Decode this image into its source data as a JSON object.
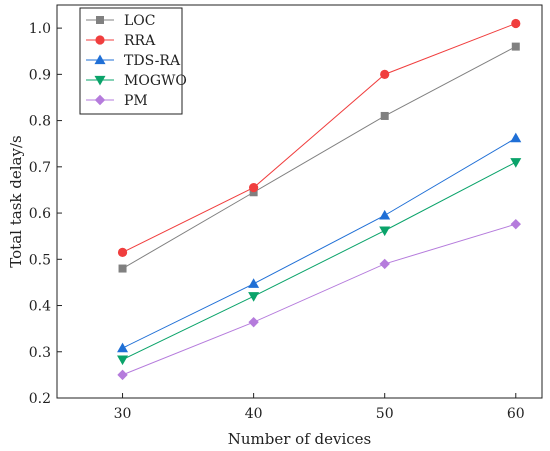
{
  "chart_data": {
    "type": "line",
    "title": "",
    "xlabel": "Number of devices",
    "ylabel": "Total task delay/s",
    "x": [
      30,
      40,
      50,
      60
    ],
    "xlim": [
      25,
      62
    ],
    "ylim": [
      0.2,
      1.05
    ],
    "xticks": [
      "30",
      "40",
      "50",
      "60"
    ],
    "yticks": [
      "0.2",
      "0.3",
      "0.4",
      "0.5",
      "0.6",
      "0.7",
      "0.8",
      "0.9",
      "1.0"
    ],
    "grid": false,
    "legend_position": "top-left",
    "series": [
      {
        "name": "LOC",
        "color": "#808080",
        "marker": "square",
        "values": [
          0.48,
          0.645,
          0.81,
          0.96
        ]
      },
      {
        "name": "RRA",
        "color": "#f03e3e",
        "marker": "circle",
        "values": [
          0.515,
          0.655,
          0.9,
          1.01
        ]
      },
      {
        "name": "TDS-RA",
        "color": "#1f6fd6",
        "marker": "triangle-up",
        "values": [
          0.308,
          0.447,
          0.595,
          0.762
        ]
      },
      {
        "name": "MOGWO",
        "color": "#0aa36a",
        "marker": "triangle-down",
        "values": [
          0.283,
          0.42,
          0.562,
          0.71
        ]
      },
      {
        "name": "PM",
        "color": "#b57bdc",
        "marker": "diamond",
        "values": [
          0.25,
          0.364,
          0.49,
          0.576
        ]
      }
    ]
  }
}
